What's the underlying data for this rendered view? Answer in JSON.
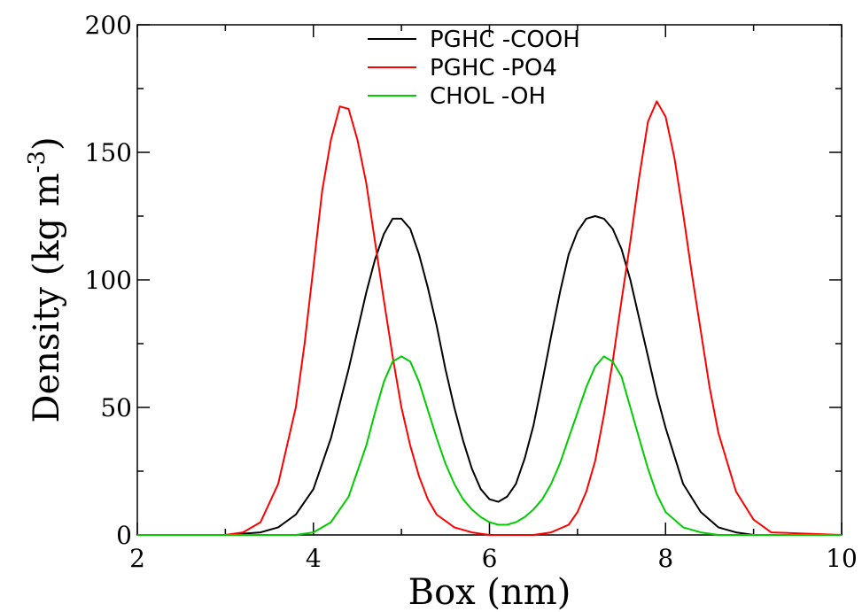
{
  "chart_data": {
    "type": "line",
    "title": "",
    "xlabel": "Box (nm)",
    "ylabel_main": "Density (kg m",
    "ylabel_sup": "-3",
    "ylabel_close": ")",
    "xlim": [
      2,
      10
    ],
    "ylim": [
      0,
      200
    ],
    "xticks": [
      2,
      4,
      6,
      8,
      10
    ],
    "yticks": [
      0,
      50,
      100,
      150,
      200
    ],
    "grid": false,
    "legend_position": "top-center",
    "series": [
      {
        "name": "PGHC -COOH",
        "color": "#000000",
        "x": [
          2.0,
          3.0,
          3.4,
          3.6,
          3.8,
          4.0,
          4.2,
          4.4,
          4.6,
          4.7,
          4.8,
          4.9,
          5.0,
          5.1,
          5.2,
          5.3,
          5.4,
          5.5,
          5.6,
          5.7,
          5.8,
          5.9,
          6.0,
          6.1,
          6.2,
          6.3,
          6.4,
          6.5,
          6.6,
          6.7,
          6.8,
          6.9,
          7.0,
          7.1,
          7.2,
          7.3,
          7.4,
          7.5,
          7.6,
          7.7,
          7.8,
          7.9,
          8.0,
          8.2,
          8.4,
          8.6,
          8.8,
          9.0,
          9.2,
          10.0
        ],
        "y": [
          0,
          0,
          1,
          3,
          8,
          18,
          38,
          65,
          95,
          108,
          118,
          124,
          124,
          120,
          110,
          97,
          82,
          65,
          50,
          37,
          26,
          18,
          14,
          13,
          15,
          20,
          30,
          43,
          60,
          78,
          95,
          110,
          119,
          124,
          125,
          124,
          120,
          112,
          100,
          85,
          70,
          55,
          42,
          20,
          9,
          3,
          1,
          0,
          0,
          0
        ]
      },
      {
        "name": "PGHC -PO4",
        "color": "#ff0000",
        "x": [
          2.0,
          3.0,
          3.2,
          3.4,
          3.6,
          3.8,
          3.9,
          4.0,
          4.1,
          4.2,
          4.3,
          4.4,
          4.5,
          4.6,
          4.7,
          4.8,
          4.9,
          5.0,
          5.1,
          5.2,
          5.3,
          5.4,
          5.6,
          5.8,
          6.0,
          6.5,
          6.7,
          6.9,
          7.0,
          7.1,
          7.2,
          7.3,
          7.4,
          7.5,
          7.6,
          7.7,
          7.8,
          7.9,
          8.0,
          8.1,
          8.2,
          8.3,
          8.4,
          8.5,
          8.6,
          8.8,
          9.0,
          9.2,
          10.0
        ],
        "y": [
          0,
          0,
          1,
          5,
          20,
          50,
          75,
          105,
          135,
          155,
          168,
          167,
          155,
          138,
          115,
          92,
          70,
          50,
          35,
          23,
          14,
          8,
          3,
          1,
          0,
          0,
          1,
          4,
          9,
          17,
          29,
          47,
          68,
          92,
          115,
          140,
          162,
          170,
          164,
          148,
          126,
          102,
          80,
          58,
          40,
          17,
          6,
          1,
          0
        ]
      },
      {
        "name": "CHOL -OH",
        "color": "#00cc00",
        "x": [
          2.0,
          3.8,
          4.0,
          4.2,
          4.4,
          4.6,
          4.7,
          4.8,
          4.9,
          5.0,
          5.1,
          5.2,
          5.3,
          5.4,
          5.5,
          5.6,
          5.7,
          5.8,
          5.9,
          6.0,
          6.1,
          6.2,
          6.3,
          6.4,
          6.5,
          6.6,
          6.7,
          6.8,
          6.9,
          7.0,
          7.1,
          7.2,
          7.3,
          7.4,
          7.5,
          7.6,
          7.7,
          7.8,
          7.9,
          8.0,
          8.2,
          8.4,
          8.6,
          10.0
        ],
        "y": [
          0,
          0,
          1,
          5,
          15,
          35,
          48,
          60,
          68,
          70,
          68,
          60,
          49,
          38,
          28,
          20,
          14,
          10,
          7,
          5,
          4,
          4,
          5,
          7,
          10,
          14,
          20,
          28,
          38,
          48,
          58,
          66,
          70,
          68,
          62,
          50,
          38,
          26,
          16,
          9,
          3,
          1,
          0,
          0
        ]
      }
    ]
  }
}
